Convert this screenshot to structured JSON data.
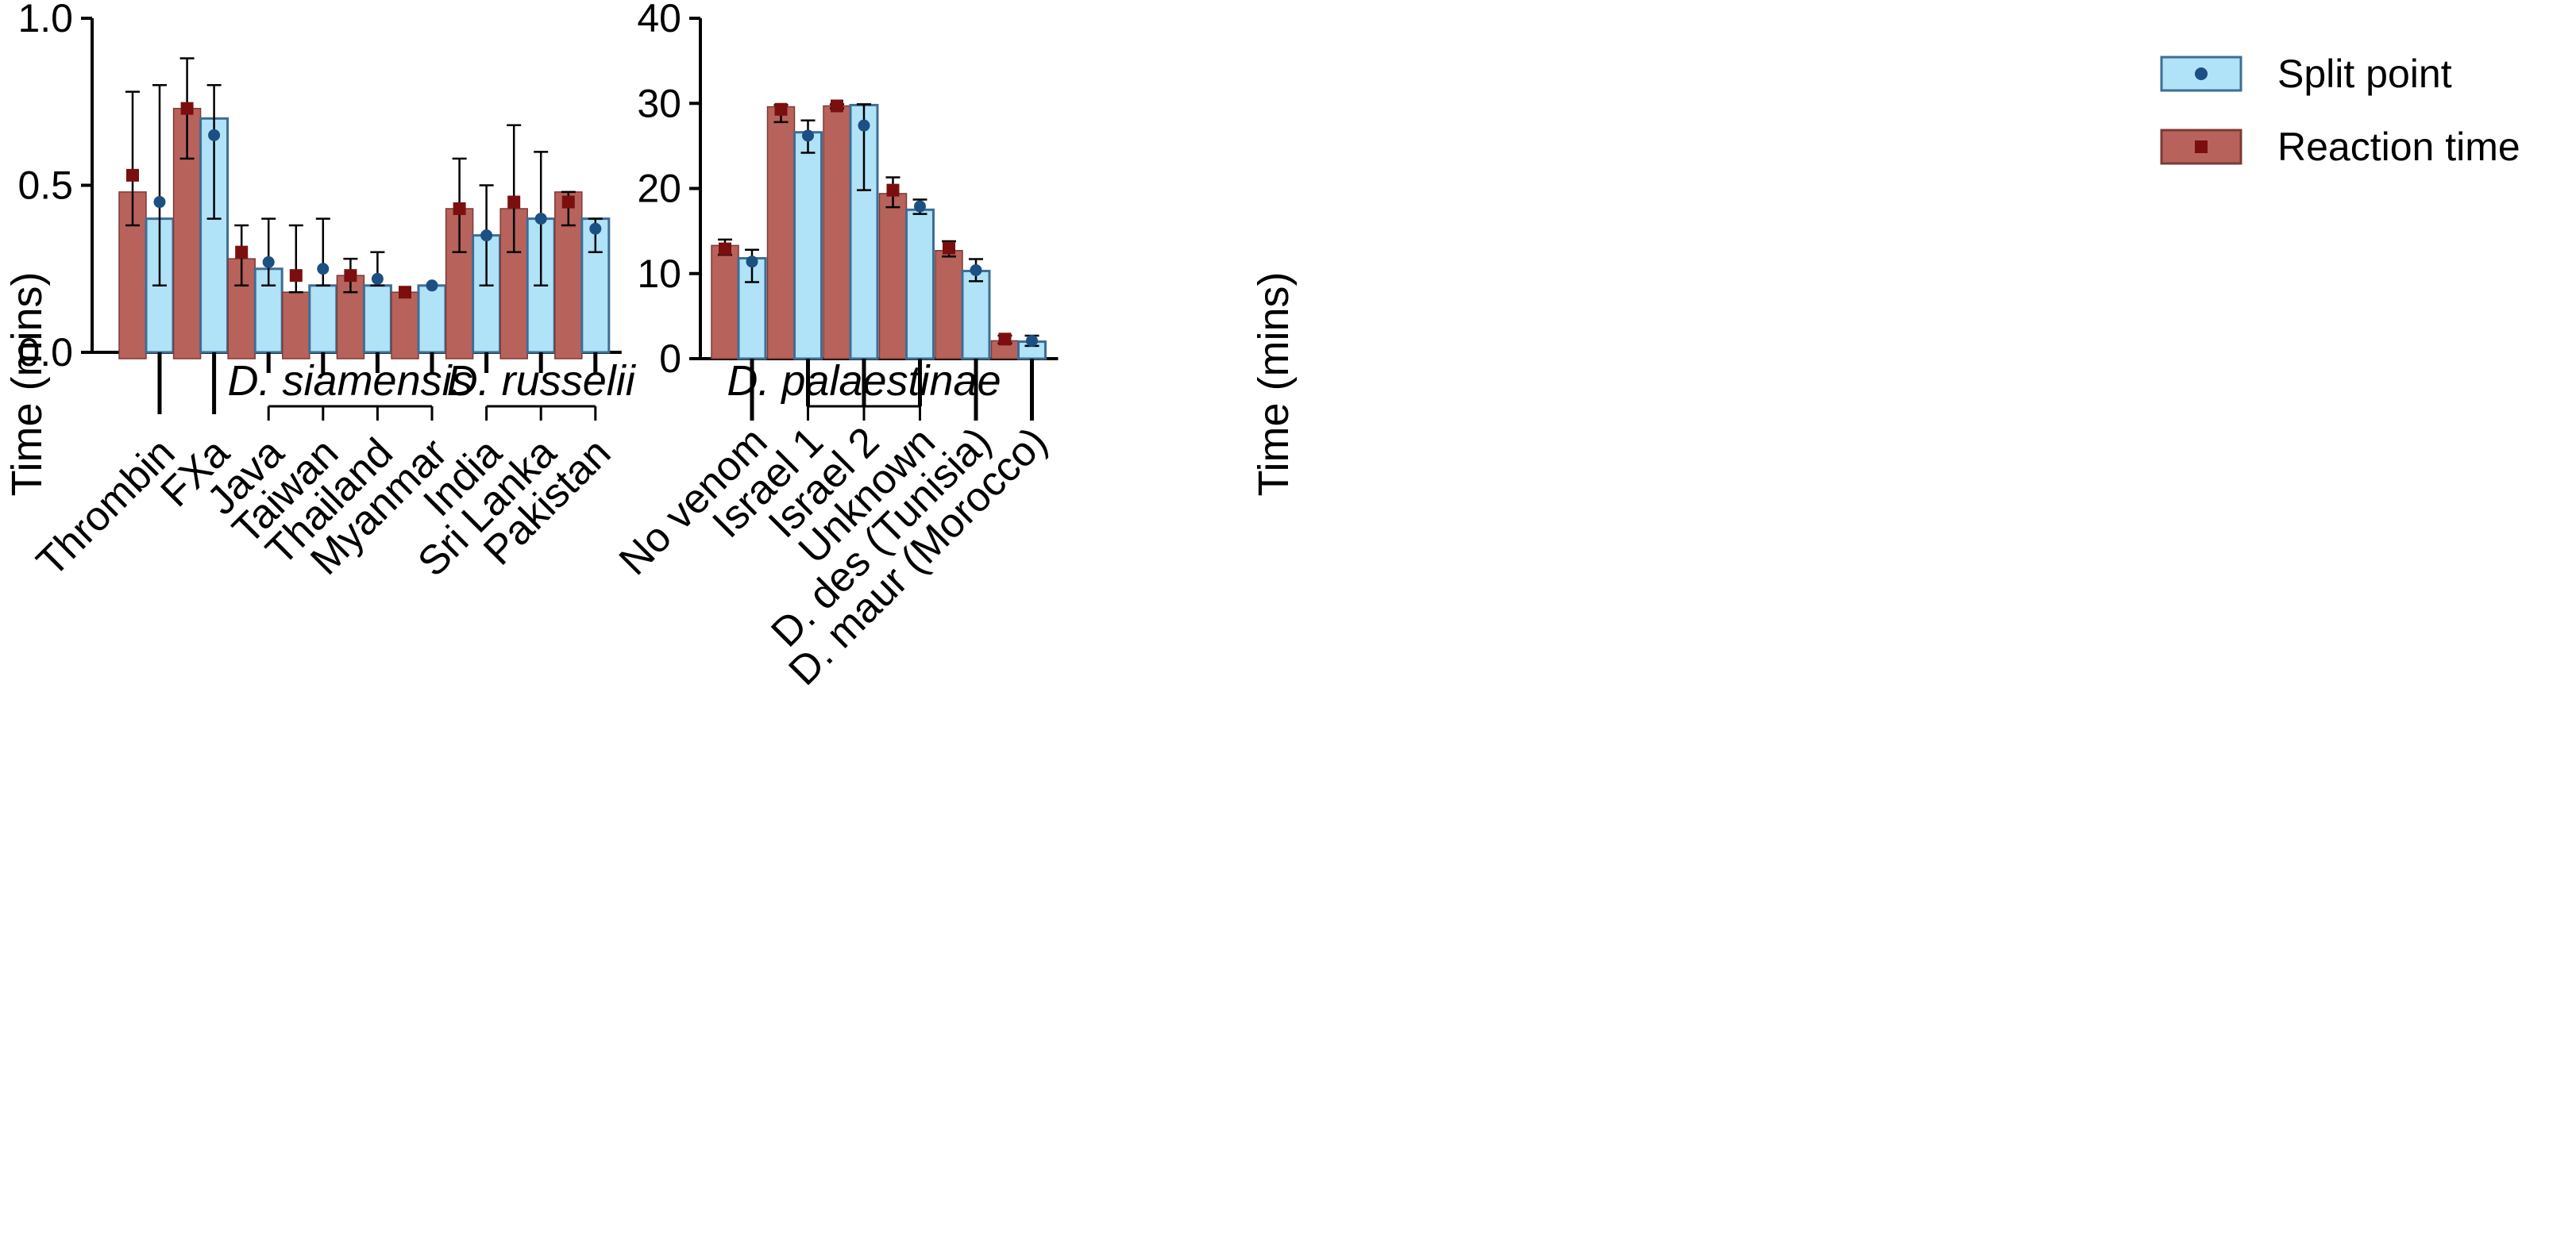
{
  "figure": {
    "background": "#ffffff"
  },
  "colors": {
    "reaction_fill": "#B8625C",
    "reaction_stroke": "#7A3B36",
    "reaction_marker": "#7B0F0F",
    "split_fill": "#B0E2F8",
    "split_stroke": "#3F6D93",
    "split_marker": "#1C4F82",
    "axis": "#000000"
  },
  "legend": {
    "items": [
      {
        "label": "Split point",
        "series": "split"
      },
      {
        "label": "Reaction time",
        "series": "reaction"
      }
    ]
  },
  "chart_data": [
    {
      "id": "left",
      "type": "bar",
      "title": "",
      "xlabel": "",
      "ylabel": "Time (mins)",
      "ylim": [
        0,
        1.0
      ],
      "yticks": [
        0.0,
        0.5,
        1.0
      ],
      "ytick_labels": [
        "0.0",
        "0.5",
        "1.0"
      ],
      "grid": false,
      "categories": [
        "Thrombin",
        "FXa",
        "Java",
        "Taiwan",
        "Thailand",
        "Myanmar",
        "India",
        "Sri Lanka",
        "Pakistan"
      ],
      "series": [
        {
          "name": "Reaction time",
          "key": "reaction",
          "values": [
            0.48,
            0.73,
            0.28,
            0.18,
            0.23,
            0.18,
            0.43,
            0.43,
            0.48
          ],
          "points": [
            0.53,
            0.73,
            0.3,
            0.23,
            0.23,
            0.18,
            0.43,
            0.45,
            0.45
          ],
          "err_low": [
            0.38,
            0.58,
            0.2,
            0.18,
            0.18,
            0.18,
            0.3,
            0.3,
            0.38
          ],
          "err_high": [
            0.78,
            0.88,
            0.38,
            0.38,
            0.28,
            0.18,
            0.58,
            0.68,
            0.48
          ]
        },
        {
          "name": "Split point",
          "key": "split",
          "values": [
            0.4,
            0.7,
            0.25,
            0.2,
            0.2,
            0.2,
            0.35,
            0.4,
            0.4
          ],
          "points": [
            0.45,
            0.65,
            0.27,
            0.25,
            0.22,
            0.2,
            0.35,
            0.4,
            0.37
          ],
          "err_low": [
            0.2,
            0.4,
            0.2,
            0.2,
            0.2,
            0.2,
            0.2,
            0.2,
            0.3
          ],
          "err_high": [
            0.8,
            0.8,
            0.4,
            0.4,
            0.3,
            0.2,
            0.5,
            0.6,
            0.4
          ]
        }
      ],
      "groups": [
        {
          "label": "D. siamensis",
          "from": 2,
          "to": 5
        },
        {
          "label": "D. russelii",
          "from": 6,
          "to": 8
        }
      ]
    },
    {
      "id": "right",
      "type": "bar",
      "title": "",
      "xlabel": "",
      "ylabel": "Time (mins)",
      "ylim": [
        0,
        40
      ],
      "yticks": [
        0,
        10,
        20,
        30,
        40
      ],
      "ytick_labels": [
        "0",
        "10",
        "20",
        "30",
        "40"
      ],
      "grid": false,
      "legend_position": "top-right",
      "categories": [
        "No venom",
        "Israel 1",
        "Israel 2",
        "Unknown",
        "D. des (Tunisia)",
        "D. maur (Morocco)"
      ],
      "series": [
        {
          "name": "Reaction time",
          "key": "reaction",
          "values": [
            13.3,
            29.6,
            29.7,
            19.4,
            12.7,
            2.1
          ],
          "points": [
            12.9,
            29.3,
            29.7,
            19.8,
            13.0,
            2.3
          ],
          "err_low": [
            12.2,
            27.8,
            29.4,
            17.8,
            12.0,
            1.8
          ],
          "err_high": [
            14.0,
            29.8,
            29.9,
            21.3,
            13.8,
            2.7
          ]
        },
        {
          "name": "Split point",
          "key": "split",
          "values": [
            11.8,
            26.6,
            29.8,
            17.5,
            10.3,
            2.0
          ],
          "points": [
            11.4,
            26.2,
            27.4,
            17.9,
            10.4,
            2.1
          ],
          "err_low": [
            9.0,
            24.2,
            19.8,
            17.0,
            9.1,
            1.5
          ],
          "err_high": [
            12.8,
            28.0,
            29.9,
            18.7,
            11.7,
            2.7
          ]
        }
      ],
      "groups": [
        {
          "label": "D. palaestinae",
          "from": 1,
          "to": 3
        }
      ]
    }
  ]
}
